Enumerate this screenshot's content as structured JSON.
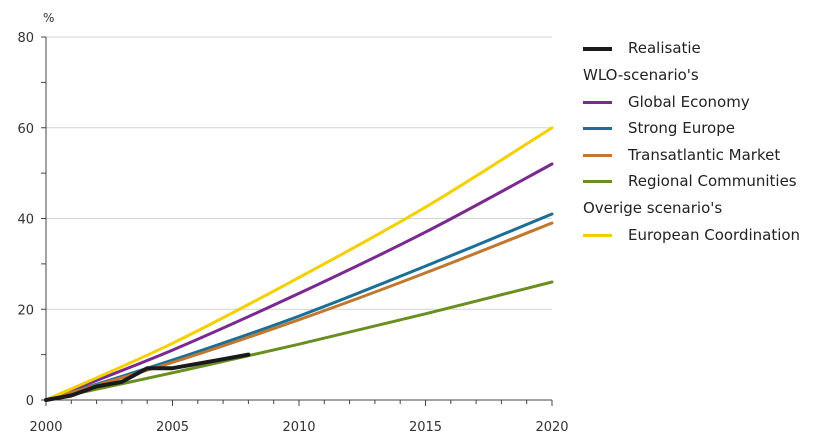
{
  "chart_data": {
    "type": "line",
    "unit_label": "%",
    "xlim": [
      2000,
      2020
    ],
    "ylim": [
      0,
      80
    ],
    "x_ticks": [
      2000,
      2005,
      2010,
      2015,
      2020
    ],
    "y_ticks": [
      0,
      20,
      40,
      60,
      80
    ],
    "grid": "horizontal",
    "legend_position": "right",
    "series": [
      {
        "name": "Realisatie",
        "color": "#1a1a1a",
        "x": [
          2000,
          2001,
          2002,
          2003,
          2004,
          2005,
          2006,
          2007,
          2008
        ],
        "y": [
          0,
          1,
          3,
          4,
          7,
          7,
          8,
          9,
          10
        ]
      },
      {
        "name": "Global Economy",
        "color": "#7a2a8e",
        "x": [
          2000,
          2005,
          2010,
          2015,
          2020
        ],
        "y": [
          0,
          11,
          23.5,
          37,
          52
        ]
      },
      {
        "name": "Strong Europe",
        "color": "#1b6f95",
        "x": [
          2000,
          2005,
          2010,
          2015,
          2020
        ],
        "y": [
          0,
          8.8,
          18.5,
          29.5,
          41
        ]
      },
      {
        "name": "Transatlantic Market",
        "color": "#c0772e",
        "x": [
          2000,
          2005,
          2010,
          2015,
          2020
        ],
        "y": [
          0,
          8.3,
          17.7,
          28,
          39
        ]
      },
      {
        "name": "Regional Communities",
        "color": "#6b8e23",
        "x": [
          2000,
          2005,
          2010,
          2015,
          2020
        ],
        "y": [
          0,
          6,
          12.3,
          19,
          26
        ]
      },
      {
        "name": "European Coordination",
        "color": "#f5d000",
        "x": [
          2000,
          2005,
          2010,
          2015,
          2020
        ],
        "y": [
          0,
          12.5,
          27,
          42.5,
          60
        ]
      }
    ]
  },
  "legend": {
    "groups": [
      {
        "heading": "",
        "items": [
          {
            "label": "Realisatie",
            "color": "#1a1a1a",
            "weight": 4
          }
        ]
      },
      {
        "heading": "WLO-scenario's",
        "items": [
          {
            "label": "Global Economy",
            "color": "#7a2a8e",
            "weight": 3
          },
          {
            "label": "Strong Europe",
            "color": "#1b6f95",
            "weight": 3
          },
          {
            "label": "Transatlantic Market",
            "color": "#c0772e",
            "weight": 3
          },
          {
            "label": "Regional Communities",
            "color": "#6b8e23",
            "weight": 3
          }
        ]
      },
      {
        "heading": "Overige scenario's",
        "items": [
          {
            "label": "European Coordination",
            "color": "#f5d000",
            "weight": 3
          }
        ]
      }
    ]
  }
}
